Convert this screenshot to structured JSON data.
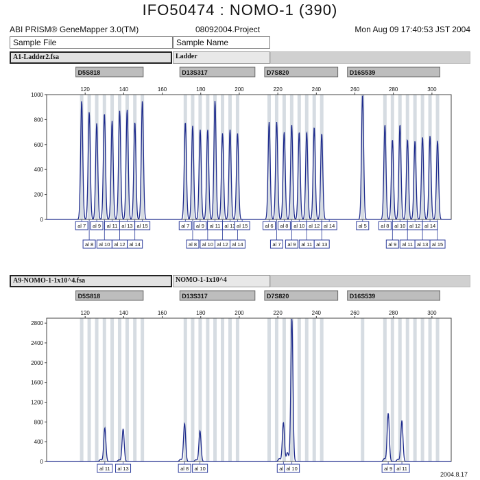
{
  "title": "IFO50474 : NOMO-1 (390)",
  "header": {
    "app": "ABI PRISM® GeneMapper 3.0(TM)",
    "project": "08092004.Project",
    "datetime": "Mon Aug 09 17:40:53 JST 2004",
    "col_sample_file": "Sample File",
    "col_sample_name": "Sample Name"
  },
  "colors": {
    "trace": "#1d2a8c",
    "bin": "#c8d0d8",
    "marker_bar": "#bdbdbd",
    "allele_box": "#2a3a9a"
  },
  "stamp": "2004.8.17",
  "chart_data": [
    {
      "type": "line",
      "sample_file": "A1-Ladder2.fsa",
      "sample_name": "Ladder",
      "markers": [
        {
          "name": "D5S818",
          "range": [
            118,
            148
          ]
        },
        {
          "name": "D13S317",
          "range": [
            172,
            206
          ]
        },
        {
          "name": "D7S820",
          "range": [
            216,
            249
          ]
        },
        {
          "name": "D16S539",
          "range": [
            259,
            302
          ]
        }
      ],
      "x_ticks": [
        120,
        140,
        160,
        180,
        200,
        220,
        240,
        260,
        280,
        300
      ],
      "y_ticks": [
        0,
        200,
        400,
        600,
        800,
        1000
      ],
      "xlim": [
        100,
        310
      ],
      "ylim": [
        0,
        1000
      ],
      "grid": true,
      "peaks": [
        {
          "x": 118.2,
          "y": 950
        },
        {
          "x": 122.1,
          "y": 860
        },
        {
          "x": 126.0,
          "y": 770
        },
        {
          "x": 130.0,
          "y": 850
        },
        {
          "x": 134.0,
          "y": 790
        },
        {
          "x": 137.9,
          "y": 870
        },
        {
          "x": 141.8,
          "y": 880
        },
        {
          "x": 145.8,
          "y": 780
        },
        {
          "x": 149.7,
          "y": 950
        },
        {
          "x": 172.0,
          "y": 780
        },
        {
          "x": 175.8,
          "y": 750
        },
        {
          "x": 179.7,
          "y": 720
        },
        {
          "x": 183.6,
          "y": 720
        },
        {
          "x": 187.4,
          "y": 950
        },
        {
          "x": 191.3,
          "y": 690
        },
        {
          "x": 195.2,
          "y": 720
        },
        {
          "x": 199.1,
          "y": 690
        },
        {
          "x": 215.5,
          "y": 780
        },
        {
          "x": 219.4,
          "y": 780
        },
        {
          "x": 223.3,
          "y": 700
        },
        {
          "x": 227.2,
          "y": 760
        },
        {
          "x": 231.1,
          "y": 700
        },
        {
          "x": 235.0,
          "y": 700
        },
        {
          "x": 238.9,
          "y": 740
        },
        {
          "x": 242.8,
          "y": 690
        },
        {
          "x": 264.0,
          "y": 1000
        },
        {
          "x": 275.6,
          "y": 760
        },
        {
          "x": 279.5,
          "y": 640
        },
        {
          "x": 283.4,
          "y": 760
        },
        {
          "x": 287.3,
          "y": 640
        },
        {
          "x": 291.2,
          "y": 630
        },
        {
          "x": 295.1,
          "y": 660
        },
        {
          "x": 299.0,
          "y": 670
        },
        {
          "x": 302.9,
          "y": 630
        }
      ],
      "bins": [
        118.2,
        122.1,
        126.0,
        130.0,
        134.0,
        137.9,
        141.8,
        145.8,
        149.7,
        172.0,
        175.8,
        179.7,
        183.6,
        187.4,
        191.3,
        195.2,
        199.1,
        215.5,
        219.4,
        223.3,
        227.2,
        231.1,
        235.0,
        238.9,
        242.8,
        264.0,
        275.6,
        279.5,
        283.4,
        287.3,
        291.2,
        295.1,
        299.0,
        302.9
      ],
      "allele_labels": [
        {
          "text": "al 7",
          "x": 118.2,
          "row": 0
        },
        {
          "text": "al 8",
          "x": 122.1,
          "row": 1
        },
        {
          "text": "al 9",
          "x": 126.0,
          "row": 0
        },
        {
          "text": "al 10",
          "x": 130.0,
          "row": 1
        },
        {
          "text": "al 11",
          "x": 134.0,
          "row": 0
        },
        {
          "text": "al 12",
          "x": 137.9,
          "row": 1
        },
        {
          "text": "al 13",
          "x": 141.8,
          "row": 0
        },
        {
          "text": "al 14",
          "x": 145.8,
          "row": 1
        },
        {
          "text": "al 15",
          "x": 149.7,
          "row": 0
        },
        {
          "text": "al 7",
          "x": 172.0,
          "row": 0
        },
        {
          "text": "al 8",
          "x": 175.8,
          "row": 1
        },
        {
          "text": "al 9",
          "x": 179.7,
          "row": 0
        },
        {
          "text": "al 10",
          "x": 183.6,
          "row": 1
        },
        {
          "text": "al 11",
          "x": 187.4,
          "row": 0
        },
        {
          "text": "al 12",
          "x": 191.3,
          "row": 1
        },
        {
          "text": "al 13",
          "x": 195.2,
          "row": 0
        },
        {
          "text": "al 14",
          "x": 199.1,
          "row": 1
        },
        {
          "text": "al 15",
          "x": 201.5,
          "row": 0
        },
        {
          "text": "al 6",
          "x": 215.5,
          "row": 0
        },
        {
          "text": "al 7",
          "x": 219.4,
          "row": 1
        },
        {
          "text": "al 8",
          "x": 223.3,
          "row": 0
        },
        {
          "text": "al 9",
          "x": 227.2,
          "row": 1
        },
        {
          "text": "al 10",
          "x": 231.1,
          "row": 0
        },
        {
          "text": "al 11",
          "x": 235.0,
          "row": 1
        },
        {
          "text": "al 12",
          "x": 238.9,
          "row": 0
        },
        {
          "text": "al 13",
          "x": 242.8,
          "row": 1
        },
        {
          "text": "al 14",
          "x": 246.7,
          "row": 0
        },
        {
          "text": "al 5",
          "x": 264.0,
          "row": 0
        },
        {
          "text": "al 8",
          "x": 275.6,
          "row": 0
        },
        {
          "text": "al 9",
          "x": 279.5,
          "row": 1
        },
        {
          "text": "al 10",
          "x": 283.4,
          "row": 0
        },
        {
          "text": "al 11",
          "x": 287.3,
          "row": 1
        },
        {
          "text": "al 12",
          "x": 291.2,
          "row": 0
        },
        {
          "text": "al 13",
          "x": 295.1,
          "row": 1
        },
        {
          "text": "al 14",
          "x": 299.0,
          "row": 0
        },
        {
          "text": "al 15",
          "x": 302.9,
          "row": 1
        }
      ]
    },
    {
      "type": "line",
      "sample_file": "A9-NOMO-1-1x10^4.fsa",
      "sample_name": "NOMO-1-1x10^4",
      "markers": [
        {
          "name": "D5S818",
          "range": [
            118,
            148
          ]
        },
        {
          "name": "D13S317",
          "range": [
            172,
            206
          ]
        },
        {
          "name": "D7S820",
          "range": [
            216,
            249
          ]
        },
        {
          "name": "D16S539",
          "range": [
            259,
            302
          ]
        }
      ],
      "x_ticks": [
        120,
        140,
        160,
        180,
        200,
        220,
        240,
        260,
        280,
        300
      ],
      "y_ticks": [
        0,
        400,
        800,
        1200,
        1600,
        2000,
        2400,
        2800
      ],
      "xlim": [
        100,
        310
      ],
      "ylim": [
        0,
        2900
      ],
      "grid": true,
      "peaks": [
        {
          "x": 130.2,
          "y": 680
        },
        {
          "x": 139.7,
          "y": 660
        },
        {
          "x": 171.6,
          "y": 770
        },
        {
          "x": 179.6,
          "y": 620
        },
        {
          "x": 222.9,
          "y": 790
        },
        {
          "x": 227.3,
          "y": 2900
        },
        {
          "x": 277.3,
          "y": 980
        },
        {
          "x": 284.4,
          "y": 830
        }
      ],
      "minor_peaks": [
        {
          "x": 128.0,
          "y": 40
        },
        {
          "x": 137.6,
          "y": 35
        },
        {
          "x": 169.5,
          "y": 45
        },
        {
          "x": 177.5,
          "y": 35
        },
        {
          "x": 220.8,
          "y": 60
        },
        {
          "x": 225.0,
          "y": 180
        },
        {
          "x": 275.3,
          "y": 60
        },
        {
          "x": 282.3,
          "y": 45
        }
      ],
      "bins": [
        118.2,
        122.1,
        126.0,
        130.0,
        134.0,
        137.9,
        141.8,
        145.8,
        149.7,
        172.0,
        175.8,
        179.7,
        183.6,
        187.4,
        191.3,
        195.2,
        199.1,
        215.5,
        219.4,
        223.3,
        227.2,
        231.1,
        235.0,
        238.9,
        242.8,
        264.0,
        275.6,
        279.5,
        283.4,
        287.3,
        291.2,
        295.1,
        299.0,
        302.9
      ],
      "allele_labels": [
        {
          "text": "al 11",
          "x": 130.2,
          "row": 0
        },
        {
          "text": "al 13",
          "x": 139.7,
          "row": 0
        },
        {
          "text": "al 8",
          "x": 171.6,
          "row": 0
        },
        {
          "text": "al 10",
          "x": 179.6,
          "row": 0
        },
        {
          "text": "al 8",
          "x": 222.9,
          "row": 0
        },
        {
          "text": "al 10",
          "x": 227.3,
          "row": 0
        },
        {
          "text": "al 9",
          "x": 277.3,
          "row": 0
        },
        {
          "text": "al 11",
          "x": 284.4,
          "row": 0
        }
      ]
    }
  ]
}
